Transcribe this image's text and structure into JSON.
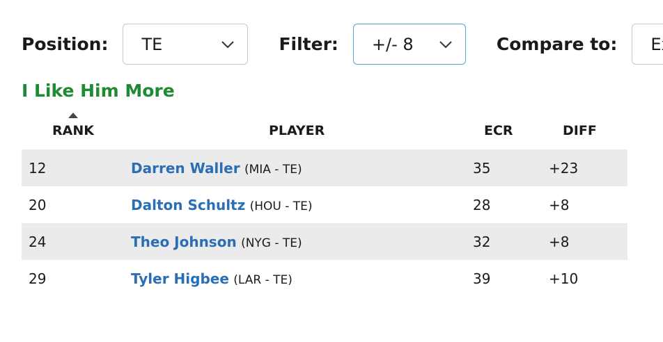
{
  "filters": {
    "position": {
      "label": "Position:",
      "value": "TE"
    },
    "filter": {
      "label": "Filter:",
      "value": "+/- 8"
    },
    "compare": {
      "label": "Compare to:",
      "value": "Exp"
    }
  },
  "section": {
    "title": "I Like Him More"
  },
  "table": {
    "headers": {
      "rank": "RANK",
      "player": "PLAYER",
      "ecr": "ECR",
      "diff": "DIFF"
    },
    "rows": [
      {
        "rank": "12",
        "name": "Darren Waller",
        "team": "(MIA - TE)",
        "ecr": "35",
        "diff": "+23"
      },
      {
        "rank": "20",
        "name": "Dalton Schultz",
        "team": "(HOU - TE)",
        "ecr": "28",
        "diff": "+8"
      },
      {
        "rank": "24",
        "name": "Theo Johnson",
        "team": "(NYG - TE)",
        "ecr": "32",
        "diff": "+8"
      },
      {
        "rank": "29",
        "name": "Tyler Higbee",
        "team": "(LAR - TE)",
        "ecr": "39",
        "diff": "+10"
      }
    ]
  },
  "colors": {
    "section_title": "#1e8b32",
    "player_link": "#2a6eb5",
    "row_shade": "#ebebeb",
    "focus_border": "#4aa8d8"
  },
  "icons": {
    "select_arrow": "chevron-down-icon",
    "sort_indicator": "sort-up-icon"
  }
}
